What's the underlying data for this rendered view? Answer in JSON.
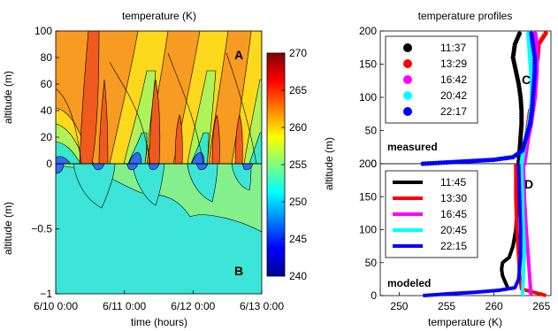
{
  "chart_data": [
    {
      "type": "heatmap",
      "title": "temperature (K)",
      "xlabel": "time (hours)",
      "ylabel_upper": "altitude (m)",
      "ylabel_lower": "altitude (m)",
      "x_ticks": [
        "6/10 0:00",
        "6/11 0:00",
        "6/12 0:00",
        "6/13 0:00"
      ],
      "upper_panel": {
        "label": "A",
        "ylim": [
          0,
          100
        ],
        "y_ticks": [
          "0",
          "20",
          "40",
          "60",
          "80",
          "100"
        ]
      },
      "lower_panel": {
        "label": "B",
        "ylim": [
          -1,
          0
        ],
        "y_ticks": [
          "−1",
          "−0.5",
          "0"
        ]
      },
      "colorbar": {
        "range": [
          240,
          270
        ],
        "ticks": [
          "240",
          "245",
          "250",
          "255",
          "260",
          "265",
          "270"
        ],
        "colormap": "jet"
      }
    },
    {
      "type": "line",
      "title": "temperature profiles",
      "xlabel": "temperature (K)",
      "ylabel": "altitude (m)",
      "xlim": [
        248,
        266
      ],
      "x_ticks": [
        "250",
        "255",
        "260",
        "265"
      ],
      "upper_panel": {
        "label": "C",
        "annotation": "measured",
        "ylim": [
          0,
          200
        ],
        "y_ticks": [
          "0",
          "50",
          "100",
          "150",
          "200"
        ],
        "series": [
          {
            "name": "11:37",
            "color": "#000000",
            "points": [
              [
                262.6,
                0
              ],
              [
                262.7,
                20
              ],
              [
                262.8,
                40
              ],
              [
                262.9,
                60
              ],
              [
                262.9,
                80
              ],
              [
                262.8,
                100
              ],
              [
                262.6,
                120
              ],
              [
                262.3,
                140
              ],
              [
                262.0,
                160
              ],
              [
                262.2,
                180
              ],
              [
                262.8,
                200
              ]
            ]
          },
          {
            "name": "13:29",
            "color": "#ff0000",
            "points": [
              [
                263.1,
                0
              ],
              [
                263.2,
                20
              ],
              [
                263.4,
                40
              ],
              [
                263.6,
                60
              ],
              [
                263.8,
                80
              ],
              [
                264.3,
                100
              ],
              [
                264.1,
                120
              ],
              [
                264.3,
                140
              ],
              [
                264.6,
                160
              ],
              [
                264.7,
                180
              ],
              [
                265.6,
                200
              ]
            ]
          },
          {
            "name": "16:42",
            "color": "#ff00ff",
            "points": [
              [
                263.2,
                0
              ],
              [
                263.4,
                20
              ],
              [
                263.6,
                40
              ],
              [
                263.9,
                60
              ],
              [
                264.1,
                80
              ],
              [
                264.3,
                100
              ],
              [
                264.4,
                120
              ],
              [
                264.5,
                140
              ],
              [
                264.5,
                160
              ],
              [
                264.5,
                180
              ],
              [
                264.3,
                200
              ]
            ]
          },
          {
            "name": "20:42",
            "color": "#00ffff",
            "points": [
              [
                262.9,
                0
              ],
              [
                263.1,
                20
              ],
              [
                263.4,
                40
              ],
              [
                263.7,
                60
              ],
              [
                263.9,
                80
              ],
              [
                264.0,
                100
              ],
              [
                264.0,
                120
              ],
              [
                263.9,
                140
              ],
              [
                263.8,
                160
              ],
              [
                263.7,
                180
              ],
              [
                263.6,
                200
              ]
            ]
          },
          {
            "name": "22:17",
            "color": "#0000ff",
            "points": [
              [
                252.5,
                0
              ],
              [
                255,
                2
              ],
              [
                257.5,
                4
              ],
              [
                260,
                6
              ],
              [
                262,
                10
              ],
              [
                263,
                20
              ],
              [
                263.4,
                40
              ],
              [
                263.8,
                60
              ],
              [
                264.0,
                80
              ],
              [
                264.1,
                100
              ],
              [
                264.2,
                120
              ],
              [
                264.3,
                140
              ],
              [
                264.3,
                160
              ],
              [
                264.1,
                180
              ],
              [
                263.9,
                200
              ]
            ]
          }
        ]
      },
      "lower_panel": {
        "label": "D",
        "annotation": "modeled",
        "ylim": [
          0,
          200
        ],
        "y_ticks": [
          "0",
          "50",
          "100",
          "150",
          "200"
        ],
        "series": [
          {
            "name": "11:45",
            "color": "#000000",
            "points": [
              [
                261.5,
                10
              ],
              [
                261.2,
                20
              ],
              [
                260.9,
                30
              ],
              [
                260.8,
                40
              ],
              [
                260.9,
                50
              ],
              [
                261.6,
                58
              ],
              [
                262.0,
                75
              ],
              [
                262.3,
                100
              ],
              [
                262.5,
                150
              ],
              [
                262.6,
                200
              ]
            ]
          },
          {
            "name": "13:30",
            "color": "#ff0000",
            "points": [
              [
                265.5,
                0
              ],
              [
                262.9,
                10
              ],
              [
                262.7,
                30
              ],
              [
                262.6,
                60
              ],
              [
                262.4,
                100
              ],
              [
                262.3,
                150
              ],
              [
                262.3,
                200
              ]
            ]
          },
          {
            "name": "16:45",
            "color": "#ff00ff",
            "points": [
              [
                263.9,
                0
              ],
              [
                263.8,
                20
              ],
              [
                263.6,
                60
              ],
              [
                263.4,
                100
              ],
              [
                263.2,
                150
              ],
              [
                263.1,
                200
              ]
            ]
          },
          {
            "name": "20:45",
            "color": "#00ffff",
            "points": [
              [
                263.0,
                0
              ],
              [
                263.1,
                30
              ],
              [
                263.2,
                70
              ],
              [
                263.1,
                100
              ],
              [
                263.0,
                150
              ],
              [
                262.9,
                200
              ]
            ]
          },
          {
            "name": "22:15",
            "color": "#0000ff",
            "points": [
              [
                252.5,
                0
              ],
              [
                255,
                2.5
              ],
              [
                258,
                5
              ],
              [
                260.5,
                8
              ],
              [
                262.2,
                12
              ],
              [
                262.6,
                25
              ],
              [
                262.8,
                60
              ],
              [
                262.8,
                100
              ],
              [
                262.7,
                150
              ],
              [
                262.6,
                200
              ]
            ]
          }
        ]
      }
    }
  ]
}
